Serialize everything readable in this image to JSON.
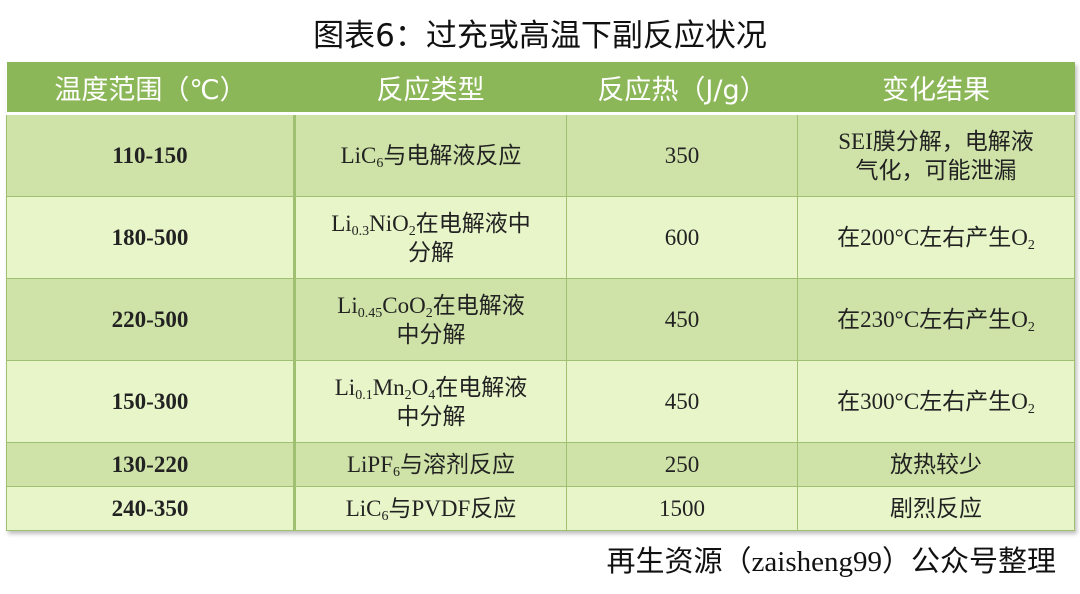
{
  "title": "图表6：过充或高温下副反应状况",
  "table": {
    "headers": [
      "温度范围（℃）",
      "反应类型",
      "反应热（J/g）",
      "变化结果"
    ],
    "rows": [
      {
        "temp": "110-150",
        "type": [
          "LiC",
          "6",
          "与电解液反应"
        ],
        "heat": "350",
        "result": [
          "SEI膜分解，电解液",
          "气化，可能泄漏"
        ]
      },
      {
        "temp": "180-500",
        "type": [
          "Li",
          "0.3",
          "NiO",
          "2",
          "在电解液中",
          "分解"
        ],
        "heat": "600",
        "result": [
          "在200°C左右产生O",
          "2"
        ]
      },
      {
        "temp": "220-500",
        "type": [
          "Li",
          "0.45",
          "CoO",
          "2",
          "在电解液",
          "中分解"
        ],
        "heat": "450",
        "result": [
          "在230°C左右产生O",
          "2"
        ]
      },
      {
        "temp": "150-300",
        "type": [
          "Li",
          "0.1",
          "Mn",
          "2",
          "O",
          "4",
          "在电解液",
          "中分解"
        ],
        "heat": "450",
        "result": [
          "在300°C左右产生O",
          "2"
        ]
      },
      {
        "temp": "130-220",
        "type": [
          "LiPF",
          "6",
          "与溶剂反应"
        ],
        "heat": "250",
        "result": [
          "放热较少"
        ]
      },
      {
        "temp": "240-350",
        "type": [
          "LiC",
          "6",
          "与PVDF反应"
        ],
        "heat": "1500",
        "result": [
          "剧烈反应"
        ]
      }
    ]
  },
  "source": {
    "prefix": "再生资源（",
    "account": "zaisheng99",
    "suffix": "）公众号整理"
  },
  "colors": {
    "header": "#8cb758",
    "row_dark": "#cfe3a8",
    "row_light": "#e7f5c8"
  }
}
